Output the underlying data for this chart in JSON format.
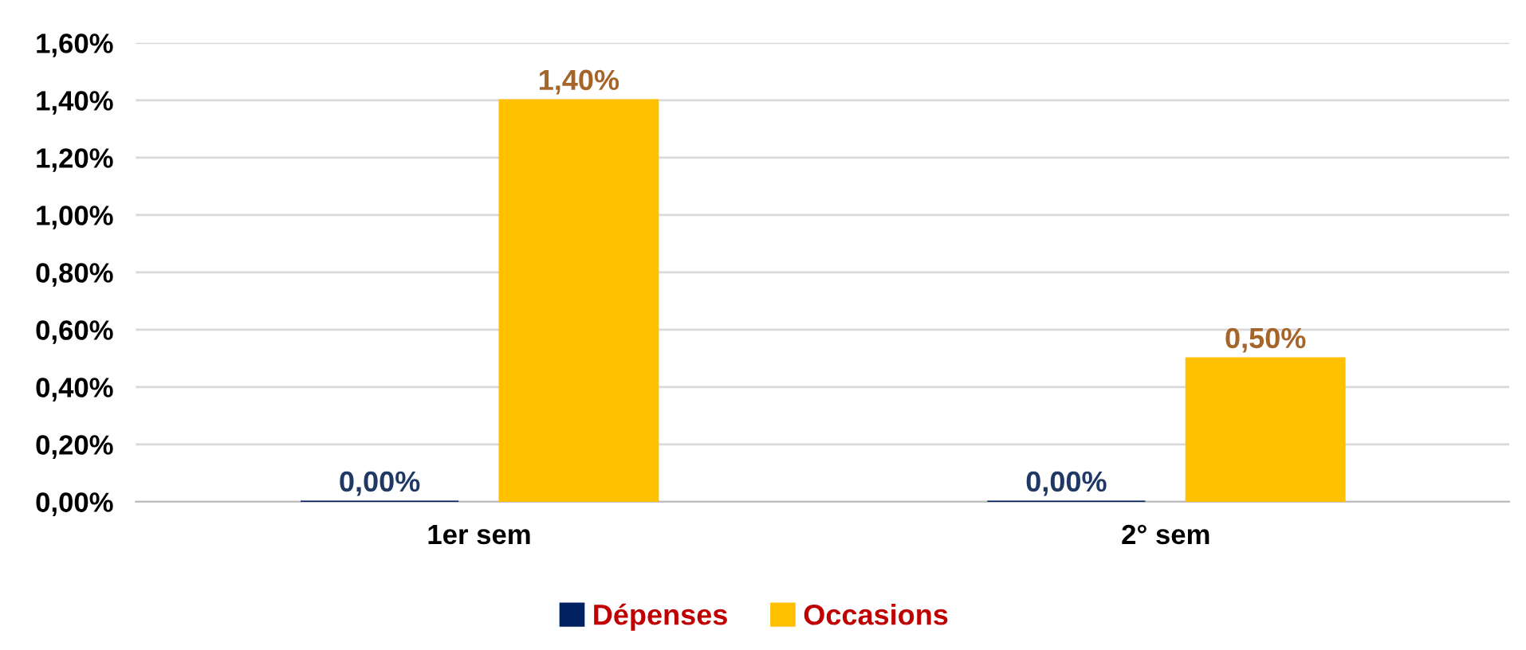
{
  "chart_data": {
    "type": "bar",
    "categories": [
      "1er sem",
      "2° sem"
    ],
    "series": [
      {
        "name": "Dépenses",
        "color": "#002060",
        "values": [
          0,
          0
        ],
        "value_labels": [
          "0,00%",
          "0,00%"
        ]
      },
      {
        "name": "Occasions",
        "color": "#ffc000",
        "values": [
          1.4,
          0.5
        ],
        "value_labels": [
          "1,40%",
          "0,50%"
        ]
      }
    ],
    "ylim": [
      0,
      1.6
    ],
    "yticks": [
      {
        "value": 0,
        "label": "0,00%"
      },
      {
        "value": 0.2,
        "label": "0,20%"
      },
      {
        "value": 0.4,
        "label": "0,40%"
      },
      {
        "value": 0.6,
        "label": "0,60%"
      },
      {
        "value": 0.8,
        "label": "0,80%"
      },
      {
        "value": 1.0,
        "label": "1,00%"
      },
      {
        "value": 1.2,
        "label": "1,20%"
      },
      {
        "value": 1.4,
        "label": "1,40%"
      },
      {
        "value": 1.6,
        "label": "1,60%"
      }
    ],
    "grid": "y",
    "legend": "bottom"
  }
}
